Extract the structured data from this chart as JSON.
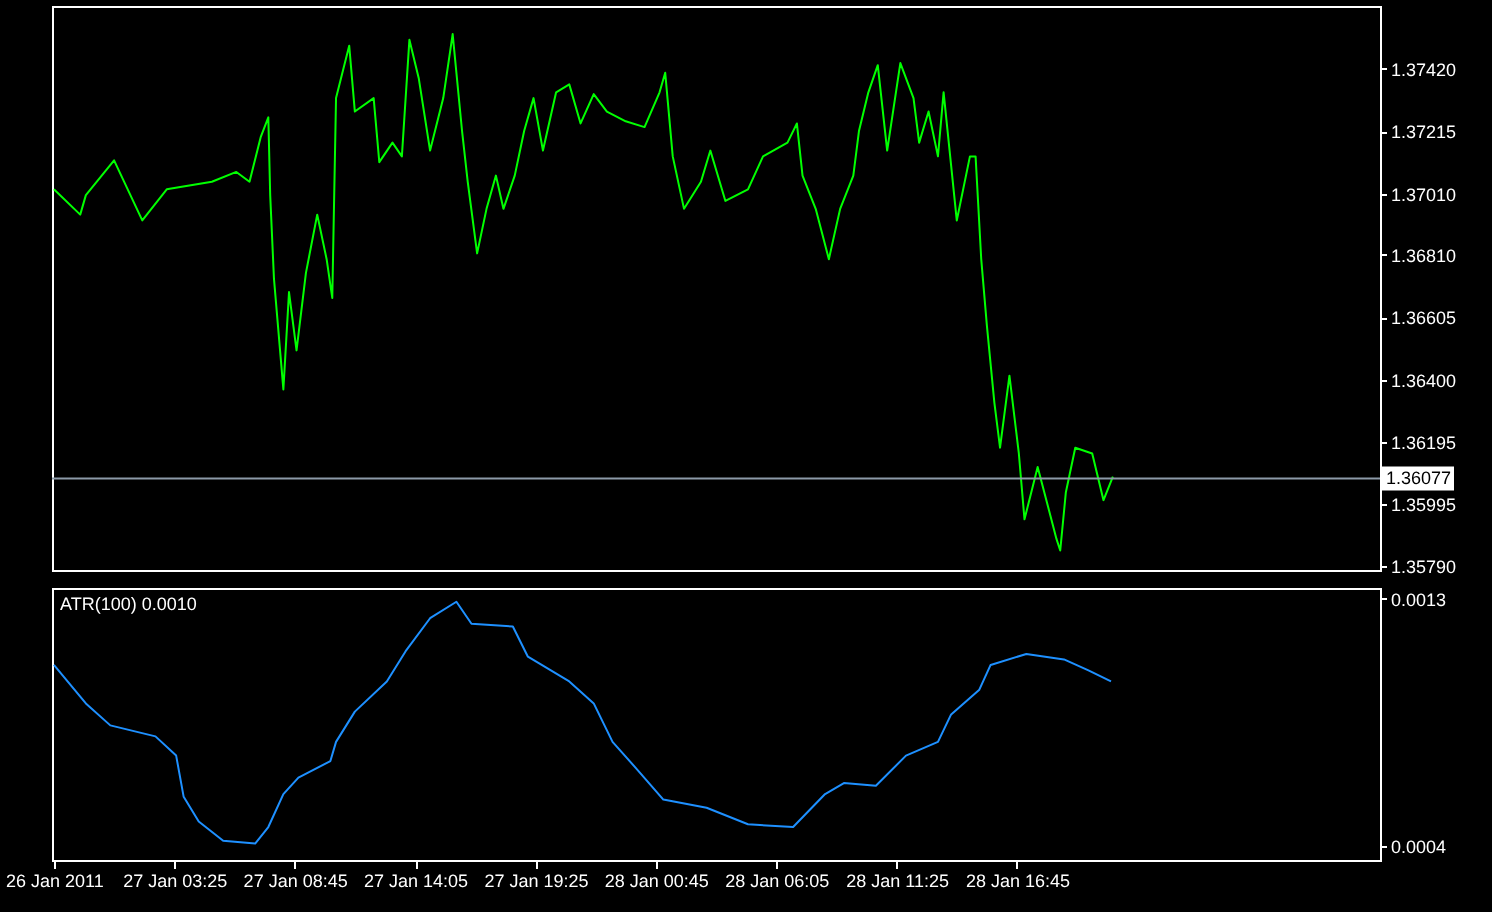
{
  "chart_data": [
    {
      "type": "line",
      "x": [
        "2011-01-26T22:05",
        "2011-01-26T23:15",
        "2011-01-26T23:30",
        "2011-01-27T00:45",
        "2011-01-27T02:00",
        "2011-01-27T03:05",
        "2011-01-27T05:05",
        "2011-01-27T06:10",
        "2011-01-27T06:45",
        "2011-01-27T07:15",
        "2011-01-27T07:35",
        "2011-01-27T07:40",
        "2011-01-27T07:50",
        "2011-01-27T08:15",
        "2011-01-27T08:30",
        "2011-01-27T08:50",
        "2011-01-27T09:15",
        "2011-01-27T09:45",
        "2011-01-27T10:10",
        "2011-01-27T10:25",
        "2011-01-27T10:35",
        "2011-01-27T11:10",
        "2011-01-27T11:25",
        "2011-01-27T12:15",
        "2011-01-27T12:30",
        "2011-01-27T13:05",
        "2011-01-27T13:30",
        "2011-01-27T13:50",
        "2011-01-27T14:15",
        "2011-01-27T14:45",
        "2011-01-27T15:20",
        "2011-01-27T15:45",
        "2011-01-27T16:10",
        "2011-01-27T16:25",
        "2011-01-27T16:50",
        "2011-01-27T17:15",
        "2011-01-27T17:40",
        "2011-01-27T18:00",
        "2011-01-27T18:30",
        "2011-01-27T18:55",
        "2011-01-27T19:20",
        "2011-01-27T19:45",
        "2011-01-27T20:20",
        "2011-01-27T20:55",
        "2011-01-27T21:25",
        "2011-01-27T22:00",
        "2011-01-27T22:35",
        "2011-01-27T23:25",
        "2011-01-28T00:15",
        "2011-01-28T00:55",
        "2011-01-28T01:10",
        "2011-01-28T01:30",
        "2011-01-28T02:00",
        "2011-01-28T02:45",
        "2011-01-28T03:10",
        "2011-01-28T03:50",
        "2011-01-28T04:50",
        "2011-01-28T05:30",
        "2011-01-28T06:35",
        "2011-01-28T07:00",
        "2011-01-28T07:15",
        "2011-01-28T07:50",
        "2011-01-28T08:25",
        "2011-01-28T08:55",
        "2011-01-28T09:30",
        "2011-01-28T09:45",
        "2011-01-28T10:10",
        "2011-01-28T10:35",
        "2011-01-28T11:00",
        "2011-01-28T11:35",
        "2011-01-28T12:10",
        "2011-01-28T12:25",
        "2011-01-28T12:50",
        "2011-01-28T13:15",
        "2011-01-28T13:30",
        "2011-01-28T14:05",
        "2011-01-28T14:40",
        "2011-01-28T14:55",
        "2011-01-28T15:10",
        "2011-01-28T15:25",
        "2011-01-28T15:45",
        "2011-01-28T16:00",
        "2011-01-28T16:25",
        "2011-01-28T16:50",
        "2011-01-28T17:05",
        "2011-01-28T17:40",
        "2011-01-28T18:30",
        "2011-01-28T18:40",
        "2011-01-28T18:55",
        "2011-01-28T19:20",
        "2011-01-28T20:05",
        "2011-01-28T20:35",
        "2011-01-28T21:00"
      ],
      "series": [
        {
          "color": "#00ff00",
          "values": [
            1.37025,
            1.36942,
            1.37006,
            1.3712,
            1.36923,
            1.37025,
            1.3705,
            1.37082,
            1.3705,
            1.37197,
            1.37261,
            1.37006,
            1.36732,
            1.36369,
            1.36688,
            1.36497,
            1.36751,
            1.36942,
            1.36796,
            1.36669,
            1.37324,
            1.37496,
            1.3728,
            1.37324,
            1.37114,
            1.37178,
            1.37133,
            1.37515,
            1.37388,
            1.37152,
            1.37324,
            1.37534,
            1.37216,
            1.3705,
            1.36815,
            1.36961,
            1.3707,
            1.36961,
            1.3707,
            1.37216,
            1.37324,
            1.37152,
            1.37343,
            1.37369,
            1.37241,
            1.37337,
            1.3728,
            1.37248,
            1.37229,
            1.37343,
            1.37407,
            1.37133,
            1.36961,
            1.3705,
            1.37152,
            1.36987,
            1.37025,
            1.37133,
            1.37178,
            1.37241,
            1.3707,
            1.36961,
            1.36796,
            1.36961,
            1.3707,
            1.37216,
            1.37343,
            1.37432,
            1.37152,
            1.37439,
            1.37324,
            1.37178,
            1.3728,
            1.37133,
            1.37343,
            1.36923,
            1.37133,
            1.37133,
            1.36796,
            1.36579,
            1.36325,
            1.36178,
            1.36414,
            1.36159,
            1.35943,
            1.36115,
            1.35879,
            1.35841,
            1.36032,
            1.36178,
            1.36159,
            1.36006,
            1.36083
          ]
        }
      ],
      "xlim": [
        "2011-01-26T22:00",
        "2011-01-29T08:50"
      ],
      "ylim": [
        1.35777,
        1.37626
      ],
      "yticks": [
        {
          "value": 1.3742,
          "label": "1.37420"
        },
        1.37215,
        {
          "value": 1.3701,
          "label": "1.37010"
        },
        {
          "value": 1.3681,
          "label": "1.36810"
        },
        1.36605,
        {
          "value": 1.364,
          "label": "1.36400"
        },
        1.36195,
        1.35995,
        {
          "value": 1.3579,
          "label": "1.35790"
        }
      ],
      "ref_lines": [
        {
          "axis": "y",
          "value": 1.36077,
          "label": "1.36077",
          "color": "#8c9aa8"
        }
      ],
      "tick_labels": "y"
    },
    {
      "type": "line",
      "title": "ATR(100) 0.0010",
      "x": [
        "2011-01-26T22:05",
        "2011-01-26T23:30",
        "2011-01-27T00:35",
        "2011-01-27T02:35",
        "2011-01-27T03:30",
        "2011-01-27T03:50",
        "2011-01-27T04:30",
        "2011-01-27T05:35",
        "2011-01-27T07:00",
        "2011-01-27T07:35",
        "2011-01-27T08:15",
        "2011-01-27T08:55",
        "2011-01-27T10:20",
        "2011-01-27T10:35",
        "2011-01-27T11:25",
        "2011-01-27T12:50",
        "2011-01-27T13:40",
        "2011-01-27T14:45",
        "2011-01-27T15:55",
        "2011-01-27T16:35",
        "2011-01-27T18:25",
        "2011-01-27T19:05",
        "2011-01-27T20:55",
        "2011-01-27T22:00",
        "2011-01-27T22:50",
        "2011-01-27T23:55",
        "2011-01-28T01:05",
        "2011-01-28T03:00",
        "2011-01-28T04:50",
        "2011-01-28T06:50",
        "2011-01-28T08:15",
        "2011-01-28T09:05",
        "2011-01-28T10:30",
        "2011-01-28T11:50",
        "2011-01-28T13:15",
        "2011-01-28T13:50",
        "2011-01-28T15:05",
        "2011-01-28T15:35",
        "2011-01-28T17:10",
        "2011-01-28T18:50",
        "2011-01-28T19:55",
        "2011-01-28T20:55"
      ],
      "series": [
        {
          "color": "#1e90ff",
          "values": [
            0.00106,
            0.00092,
            0.00084,
            0.0008,
            0.00073,
            0.00058,
            0.00049,
            0.00042,
            0.00041,
            0.00047,
            0.00059,
            0.00065,
            0.00071,
            0.00078,
            0.00089,
            0.001,
            0.00111,
            0.00123,
            0.00129,
            0.00121,
            0.0012,
            0.00109,
            0.001,
            0.00092,
            0.00078,
            0.00068,
            0.00057,
            0.00054,
            0.00048,
            0.00047,
            0.00059,
            0.00063,
            0.00062,
            0.00073,
            0.00078,
            0.00088,
            0.00097,
            0.00106,
            0.0011,
            0.00108,
            0.00104,
            0.001
          ]
        }
      ],
      "xlim": [
        "2011-01-26T22:00",
        "2011-01-29T08:50"
      ],
      "xticks": [
        {
          "value": "2011-01-26T22:05",
          "label": "26 Jan 2011"
        },
        {
          "value": "2011-01-27T03:25",
          "label": "27 Jan 03:25"
        },
        {
          "value": "2011-01-27T08:45",
          "label": "27 Jan 08:45"
        },
        {
          "value": "2011-01-27T14:05",
          "label": "27 Jan 14:05"
        },
        {
          "value": "2011-01-27T19:25",
          "label": "27 Jan 19:25"
        },
        {
          "value": "2011-01-28T00:45",
          "label": "28 Jan 00:45"
        },
        {
          "value": "2011-01-28T06:05",
          "label": "28 Jan 06:05"
        },
        {
          "value": "2011-01-28T11:25",
          "label": "28 Jan 11:25"
        },
        {
          "value": "2011-01-28T16:45",
          "label": "28 Jan 16:45"
        }
      ],
      "ylim": [
        0.00035,
        0.00134
      ],
      "yticks": [
        0.0013,
        0.0004
      ]
    }
  ]
}
